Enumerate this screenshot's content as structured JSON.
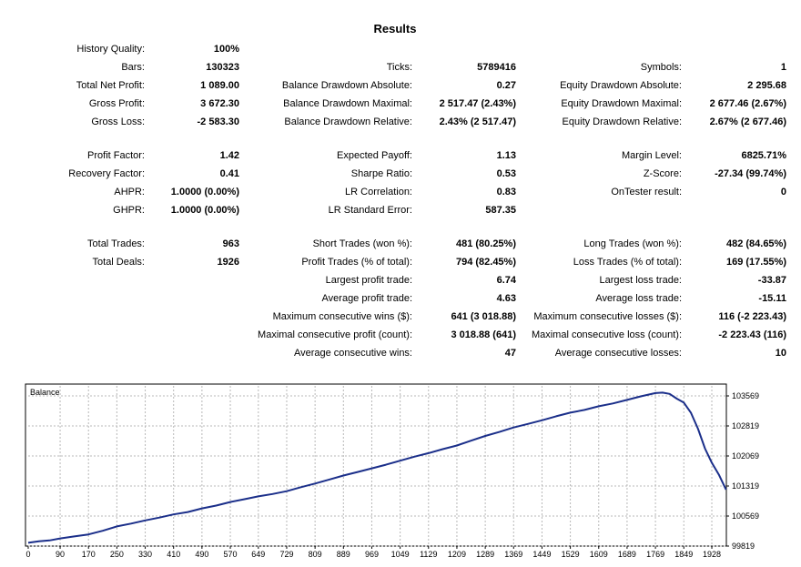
{
  "report": {
    "title": "Results",
    "sections": [
      [
        {
          "label": "History Quality:",
          "value": "100%"
        },
        null,
        null
      ],
      [
        {
          "label": "Bars:",
          "value": "130323"
        },
        {
          "label": "Ticks:",
          "value": "5789416"
        },
        {
          "label": "Symbols:",
          "value": "1"
        }
      ],
      [
        {
          "label": "Total Net Profit:",
          "value": "1 089.00"
        },
        {
          "label": "Balance Drawdown Absolute:",
          "value": "0.27"
        },
        {
          "label": "Equity Drawdown Absolute:",
          "value": "2 295.68"
        }
      ],
      [
        {
          "label": "Gross Profit:",
          "value": "3 672.30"
        },
        {
          "label": "Balance Drawdown Maximal:",
          "value": "2 517.47 (2.43%)"
        },
        {
          "label": "Equity Drawdown Maximal:",
          "value": "2 677.46 (2.67%)"
        }
      ],
      [
        {
          "label": "Gross Loss:",
          "value": "-2 583.30"
        },
        {
          "label": "Balance Drawdown Relative:",
          "value": "2.43% (2 517.47)"
        },
        {
          "label": "Equity Drawdown Relative:",
          "value": "2.67% (2 677.46)"
        }
      ],
      "gap",
      [
        {
          "label": "Profit Factor:",
          "value": "1.42"
        },
        {
          "label": "Expected Payoff:",
          "value": "1.13"
        },
        {
          "label": "Margin Level:",
          "value": "6825.71%"
        }
      ],
      [
        {
          "label": "Recovery Factor:",
          "value": "0.41"
        },
        {
          "label": "Sharpe Ratio:",
          "value": "0.53"
        },
        {
          "label": "Z-Score:",
          "value": "-27.34 (99.74%)"
        }
      ],
      [
        {
          "label": "AHPR:",
          "value": "1.0000 (0.00%)"
        },
        {
          "label": "LR Correlation:",
          "value": "0.83"
        },
        {
          "label": "OnTester result:",
          "value": "0"
        }
      ],
      [
        {
          "label": "GHPR:",
          "value": "1.0000 (0.00%)"
        },
        {
          "label": "LR Standard Error:",
          "value": "587.35"
        },
        null
      ],
      "gap",
      [
        {
          "label": "Total Trades:",
          "value": "963"
        },
        {
          "label": "Short Trades (won %):",
          "value": "481 (80.25%)"
        },
        {
          "label": "Long Trades (won %):",
          "value": "482 (84.65%)"
        }
      ],
      [
        {
          "label": "Total Deals:",
          "value": "1926"
        },
        {
          "label": "Profit Trades (% of total):",
          "value": "794 (82.45%)"
        },
        {
          "label": "Loss Trades (% of total):",
          "value": "169 (17.55%)"
        }
      ],
      [
        null,
        {
          "label": "Largest profit trade:",
          "value": "6.74"
        },
        {
          "label": "Largest loss trade:",
          "value": "-33.87"
        }
      ],
      [
        null,
        {
          "label": "Average profit trade:",
          "value": "4.63"
        },
        {
          "label": "Average loss trade:",
          "value": "-15.11"
        }
      ],
      [
        null,
        {
          "label": "Maximum consecutive wins ($):",
          "value": "641 (3 018.88)"
        },
        {
          "label": "Maximum consecutive losses ($):",
          "value": "116 (-2 223.43)"
        }
      ],
      [
        null,
        {
          "label": "Maximal consecutive profit (count):",
          "value": "3 018.88 (641)"
        },
        {
          "label": "Maximal consecutive loss (count):",
          "value": "-2 223.43 (116)"
        }
      ],
      [
        null,
        {
          "label": "Average consecutive wins:",
          "value": "47"
        },
        {
          "label": "Average consecutive losses:",
          "value": "10"
        }
      ]
    ]
  },
  "chart_data": {
    "type": "line",
    "title": "Balance",
    "line_color": "#1b2f8a",
    "grid": true,
    "x_ticks": [
      0,
      90,
      170,
      250,
      330,
      410,
      490,
      570,
      649,
      729,
      809,
      889,
      969,
      1049,
      1129,
      1209,
      1289,
      1369,
      1449,
      1529,
      1609,
      1689,
      1769,
      1849,
      1928
    ],
    "y_ticks": [
      99819,
      100569,
      101319,
      102069,
      102819,
      103569
    ],
    "xlim": [
      0,
      1969
    ],
    "ylim": [
      99819,
      103819
    ],
    "series": [
      {
        "x": [
          0,
          30,
          60,
          90,
          130,
          170,
          210,
          250,
          290,
          330,
          370,
          410,
          450,
          490,
          530,
          570,
          610,
          649,
          689,
          729,
          769,
          809,
          849,
          889,
          929,
          969,
          1009,
          1049,
          1089,
          1129,
          1169,
          1209,
          1249,
          1289,
          1329,
          1369,
          1409,
          1449,
          1489,
          1529,
          1569,
          1609,
          1649,
          1689,
          1729,
          1769,
          1789,
          1809,
          1829,
          1849,
          1869,
          1889,
          1909,
          1928,
          1948,
          1968
        ],
        "y": [
          99900,
          99940,
          99960,
          100010,
          100060,
          100110,
          100200,
          100310,
          100380,
          100460,
          100530,
          100610,
          100670,
          100760,
          100830,
          100920,
          100990,
          101060,
          101120,
          101190,
          101290,
          101380,
          101480,
          101580,
          101670,
          101760,
          101850,
          101950,
          102050,
          102140,
          102240,
          102330,
          102450,
          102570,
          102670,
          102780,
          102870,
          102960,
          103060,
          103150,
          103220,
          103310,
          103380,
          103470,
          103560,
          103640,
          103650,
          103620,
          103500,
          103400,
          103150,
          102750,
          102250,
          101900,
          101600,
          101230
        ]
      }
    ]
  }
}
